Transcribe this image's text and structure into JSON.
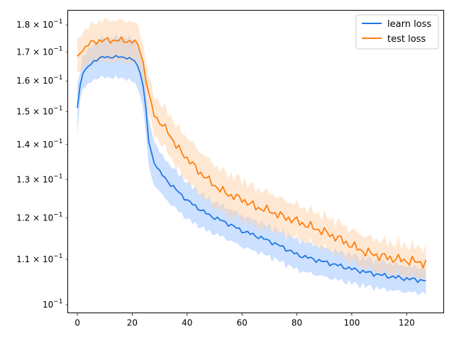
{
  "chart_data": {
    "type": "line",
    "title": "",
    "xlabel": "",
    "ylabel": "",
    "y_scale": "log",
    "xlim": [
      -3.5,
      133.5
    ],
    "ylim": [
      0.0983,
      0.1856
    ],
    "grid": false,
    "legend_position": "top-right",
    "x_ticks": [
      0,
      20,
      40,
      60,
      80,
      100,
      120
    ],
    "x_tick_labels": [
      "0",
      "20",
      "40",
      "60",
      "80",
      "100",
      "120"
    ],
    "y_ticks": [
      {
        "value": 0.1,
        "mantissa": "10",
        "exp": "−1"
      },
      {
        "value": 0.11,
        "mantissa": "1.1 × 10",
        "exp": "−1"
      },
      {
        "value": 0.12,
        "mantissa": "1.2 × 10",
        "exp": "−1"
      },
      {
        "value": 0.13,
        "mantissa": "1.3 × 10",
        "exp": "−1"
      },
      {
        "value": 0.14,
        "mantissa": "1.4 × 10",
        "exp": "−1"
      },
      {
        "value": 0.15,
        "mantissa": "1.5 × 10",
        "exp": "−1"
      },
      {
        "value": 0.16,
        "mantissa": "1.6 × 10",
        "exp": "−1"
      },
      {
        "value": 0.17,
        "mantissa": "1.7 × 10",
        "exp": "−1"
      },
      {
        "value": 0.18,
        "mantissa": "1.8 × 10",
        "exp": "−1"
      }
    ],
    "x": [
      0,
      128
    ],
    "series": [
      {
        "name": "learn loss",
        "color": "#1f77e4",
        "band_color": "#aaccff",
        "keypoints": [
          [
            0,
            0.1512
          ],
          [
            1,
            0.1585
          ],
          [
            2,
            0.1625
          ],
          [
            4,
            0.1648
          ],
          [
            6,
            0.1668
          ],
          [
            8,
            0.1678
          ],
          [
            10,
            0.1682
          ],
          [
            14,
            0.1683
          ],
          [
            18,
            0.1681
          ],
          [
            21,
            0.1668
          ],
          [
            23,
            0.1628
          ],
          [
            24,
            0.158
          ],
          [
            25,
            0.1505
          ],
          [
            26,
            0.141
          ],
          [
            27,
            0.1375
          ],
          [
            28,
            0.135
          ],
          [
            30,
            0.1322
          ],
          [
            33,
            0.1295
          ],
          [
            36,
            0.1273
          ],
          [
            40,
            0.1245
          ],
          [
            44,
            0.1225
          ],
          [
            48,
            0.1207
          ],
          [
            52,
            0.1195
          ],
          [
            56,
            0.1182
          ],
          [
            60,
            0.1168
          ],
          [
            65,
            0.1156
          ],
          [
            70,
            0.1143
          ],
          [
            75,
            0.1128
          ],
          [
            80,
            0.1111
          ],
          [
            85,
            0.1102
          ],
          [
            90,
            0.1094
          ],
          [
            95,
            0.1086
          ],
          [
            100,
            0.1078
          ],
          [
            105,
            0.1071
          ],
          [
            110,
            0.1065
          ],
          [
            115,
            0.106
          ],
          [
            120,
            0.1056
          ],
          [
            125,
            0.1053
          ],
          [
            127,
            0.1052
          ]
        ],
        "band_offsets": [
          [
            0,
            0.0082
          ],
          [
            1,
            0.0045
          ],
          [
            2,
            0.0055
          ],
          [
            4,
            0.006
          ],
          [
            10,
            0.007
          ],
          [
            20,
            0.0075
          ],
          [
            25,
            0.0075
          ],
          [
            30,
            0.0055
          ],
          [
            50,
            0.004
          ],
          [
            80,
            0.0035
          ],
          [
            127,
            0.0028
          ]
        ]
      },
      {
        "name": "test loss",
        "color": "#ff7f0e",
        "band_color": "#ffd2a8",
        "keypoints": [
          [
            0,
            0.1685
          ],
          [
            2,
            0.1705
          ],
          [
            4,
            0.1728
          ],
          [
            6,
            0.1737
          ],
          [
            8,
            0.1741
          ],
          [
            12,
            0.1743
          ],
          [
            16,
            0.1742
          ],
          [
            20,
            0.1738
          ],
          [
            22,
            0.1728
          ],
          [
            23,
            0.1705
          ],
          [
            24,
            0.166
          ],
          [
            25,
            0.1605
          ],
          [
            26,
            0.1555
          ],
          [
            27,
            0.152
          ],
          [
            28,
            0.1495
          ],
          [
            30,
            0.1465
          ],
          [
            33,
            0.144
          ],
          [
            36,
            0.1395
          ],
          [
            40,
            0.136
          ],
          [
            44,
            0.1325
          ],
          [
            48,
            0.1298
          ],
          [
            52,
            0.1273
          ],
          [
            56,
            0.1258
          ],
          [
            60,
            0.1248
          ],
          [
            65,
            0.1228
          ],
          [
            70,
            0.1218
          ],
          [
            75,
            0.1203
          ],
          [
            80,
            0.1192
          ],
          [
            85,
            0.1178
          ],
          [
            90,
            0.1165
          ],
          [
            95,
            0.115
          ],
          [
            100,
            0.1132
          ],
          [
            105,
            0.1117
          ],
          [
            110,
            0.1108
          ],
          [
            115,
            0.1102
          ],
          [
            120,
            0.1097
          ],
          [
            125,
            0.1093
          ],
          [
            127,
            0.1092
          ]
        ],
        "band_offsets": [
          [
            0,
            0.006
          ],
          [
            10,
            0.0075
          ],
          [
            20,
            0.0075
          ],
          [
            25,
            0.006
          ],
          [
            30,
            0.006
          ],
          [
            40,
            0.0062
          ],
          [
            60,
            0.0052
          ],
          [
            80,
            0.0042
          ],
          [
            100,
            0.0038
          ],
          [
            127,
            0.0035
          ]
        ]
      }
    ]
  }
}
